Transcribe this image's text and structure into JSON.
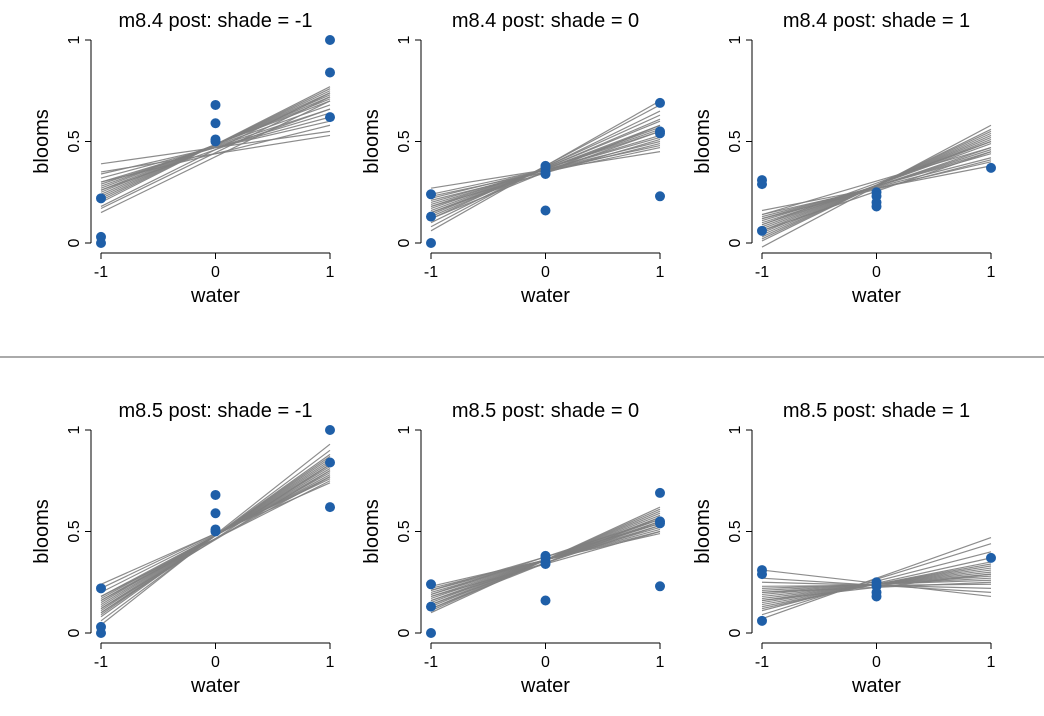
{
  "colors": {
    "point": "#1f5fa8",
    "line": "#7f7f7f",
    "divider": "#555555"
  },
  "chart_data": [
    {
      "type": "line",
      "title": "m8.4 post: shade = -1",
      "xlabel": "water",
      "ylabel": "blooms",
      "xlim": [
        -1,
        1
      ],
      "ylim": [
        0,
        1
      ],
      "xticks": [
        "-1",
        "0",
        "1"
      ],
      "yticks": [
        "0",
        "0.5",
        "1"
      ],
      "points": [
        [
          -1,
          0.22
        ],
        [
          -1,
          0.03
        ],
        [
          -1,
          0.0
        ],
        [
          0,
          0.68
        ],
        [
          0,
          0.59
        ],
        [
          0,
          0.51
        ],
        [
          0,
          0.5
        ],
        [
          1,
          1.0
        ],
        [
          1,
          0.84
        ],
        [
          1,
          0.62
        ]
      ],
      "lines": [
        [
          0.39,
          0.55
        ],
        [
          0.34,
          0.6
        ],
        [
          0.32,
          0.62
        ],
        [
          0.3,
          0.64
        ],
        [
          0.29,
          0.66
        ],
        [
          0.28,
          0.68
        ],
        [
          0.27,
          0.7
        ],
        [
          0.26,
          0.71
        ],
        [
          0.25,
          0.72
        ],
        [
          0.24,
          0.73
        ],
        [
          0.23,
          0.74
        ],
        [
          0.22,
          0.75
        ],
        [
          0.21,
          0.76
        ],
        [
          0.2,
          0.77
        ],
        [
          0.18,
          0.74
        ],
        [
          0.17,
          0.72
        ],
        [
          0.15,
          0.7
        ],
        [
          0.26,
          0.66
        ],
        [
          0.3,
          0.58
        ],
        [
          0.35,
          0.53
        ]
      ]
    },
    {
      "type": "line",
      "title": "m8.4 post: shade = 0",
      "xlabel": "water",
      "ylabel": "blooms",
      "xlim": [
        -1,
        1
      ],
      "ylim": [
        0,
        1
      ],
      "xticks": [
        "-1",
        "0",
        "1"
      ],
      "yticks": [
        "0",
        "0.5",
        "1"
      ],
      "points": [
        [
          -1,
          0.24
        ],
        [
          -1,
          0.13
        ],
        [
          -1,
          0.0
        ],
        [
          0,
          0.38
        ],
        [
          0,
          0.37
        ],
        [
          0,
          0.35
        ],
        [
          0,
          0.34
        ],
        [
          0,
          0.16
        ],
        [
          1,
          0.69
        ],
        [
          1,
          0.55
        ],
        [
          1,
          0.54
        ],
        [
          1,
          0.23
        ]
      ],
      "lines": [
        [
          0.27,
          0.45
        ],
        [
          0.24,
          0.48
        ],
        [
          0.22,
          0.5
        ],
        [
          0.2,
          0.52
        ],
        [
          0.19,
          0.53
        ],
        [
          0.18,
          0.55
        ],
        [
          0.17,
          0.56
        ],
        [
          0.16,
          0.57
        ],
        [
          0.15,
          0.58
        ],
        [
          0.14,
          0.6
        ],
        [
          0.13,
          0.61
        ],
        [
          0.12,
          0.63
        ],
        [
          0.1,
          0.65
        ],
        [
          0.08,
          0.68
        ],
        [
          0.06,
          0.7
        ],
        [
          0.21,
          0.49
        ],
        [
          0.23,
          0.47
        ],
        [
          0.15,
          0.55
        ],
        [
          0.12,
          0.58
        ],
        [
          0.18,
          0.51
        ]
      ]
    },
    {
      "type": "line",
      "title": "m8.4 post: shade = 1",
      "xlabel": "water",
      "ylabel": "blooms",
      "xlim": [
        -1,
        1
      ],
      "ylim": [
        0,
        1
      ],
      "xticks": [
        "-1",
        "0",
        "1"
      ],
      "yticks": [
        "0",
        "0.5",
        "1"
      ],
      "points": [
        [
          -1,
          0.31
        ],
        [
          -1,
          0.29
        ],
        [
          -1,
          0.06
        ],
        [
          0,
          0.25
        ],
        [
          0,
          0.23
        ],
        [
          0,
          0.2
        ],
        [
          0,
          0.18
        ],
        [
          1,
          0.37
        ]
      ],
      "lines": [
        [
          0.16,
          0.38
        ],
        [
          0.14,
          0.4
        ],
        [
          0.13,
          0.42
        ],
        [
          0.12,
          0.44
        ],
        [
          0.11,
          0.45
        ],
        [
          0.1,
          0.46
        ],
        [
          0.09,
          0.47
        ],
        [
          0.08,
          0.49
        ],
        [
          0.07,
          0.5
        ],
        [
          0.06,
          0.51
        ],
        [
          0.05,
          0.52
        ],
        [
          0.04,
          0.53
        ],
        [
          0.03,
          0.54
        ],
        [
          0.02,
          0.55
        ],
        [
          0.01,
          0.56
        ],
        [
          -0.02,
          0.58
        ],
        [
          0.12,
          0.41
        ],
        [
          0.09,
          0.5
        ],
        [
          0.06,
          0.45
        ],
        [
          0.14,
          0.47
        ]
      ]
    },
    {
      "type": "line",
      "title": "m8.5 post: shade = -1",
      "xlabel": "water",
      "ylabel": "blooms",
      "xlim": [
        -1,
        1
      ],
      "ylim": [
        0,
        1
      ],
      "xticks": [
        "-1",
        "0",
        "1"
      ],
      "yticks": [
        "0",
        "0.5",
        "1"
      ],
      "points": [
        [
          -1,
          0.22
        ],
        [
          -1,
          0.03
        ],
        [
          -1,
          0.0
        ],
        [
          0,
          0.68
        ],
        [
          0,
          0.59
        ],
        [
          0,
          0.51
        ],
        [
          0,
          0.5
        ],
        [
          1,
          1.0
        ],
        [
          1,
          0.84
        ],
        [
          1,
          0.62
        ]
      ],
      "lines": [
        [
          0.24,
          0.74
        ],
        [
          0.22,
          0.76
        ],
        [
          0.2,
          0.77
        ],
        [
          0.18,
          0.78
        ],
        [
          0.17,
          0.79
        ],
        [
          0.16,
          0.8
        ],
        [
          0.15,
          0.81
        ],
        [
          0.14,
          0.82
        ],
        [
          0.13,
          0.83
        ],
        [
          0.12,
          0.84
        ],
        [
          0.11,
          0.85
        ],
        [
          0.1,
          0.86
        ],
        [
          0.09,
          0.87
        ],
        [
          0.08,
          0.88
        ],
        [
          0.06,
          0.9
        ],
        [
          0.04,
          0.93
        ],
        [
          0.12,
          0.8
        ],
        [
          0.16,
          0.77
        ],
        [
          0.1,
          0.83
        ],
        [
          0.18,
          0.75
        ]
      ]
    },
    {
      "type": "line",
      "title": "m8.5 post: shade = 0",
      "xlabel": "water",
      "ylabel": "blooms",
      "xlim": [
        -1,
        1
      ],
      "ylim": [
        0,
        1
      ],
      "xticks": [
        "-1",
        "0",
        "1"
      ],
      "yticks": [
        "0",
        "0.5",
        "1"
      ],
      "points": [
        [
          -1,
          0.24
        ],
        [
          -1,
          0.13
        ],
        [
          -1,
          0.0
        ],
        [
          0,
          0.38
        ],
        [
          0,
          0.37
        ],
        [
          0,
          0.35
        ],
        [
          0,
          0.34
        ],
        [
          0,
          0.16
        ],
        [
          1,
          0.69
        ],
        [
          1,
          0.55
        ],
        [
          1,
          0.54
        ],
        [
          1,
          0.23
        ]
      ],
      "lines": [
        [
          0.23,
          0.49
        ],
        [
          0.22,
          0.5
        ],
        [
          0.21,
          0.51
        ],
        [
          0.2,
          0.52
        ],
        [
          0.19,
          0.53
        ],
        [
          0.18,
          0.54
        ],
        [
          0.17,
          0.55
        ],
        [
          0.16,
          0.56
        ],
        [
          0.15,
          0.57
        ],
        [
          0.14,
          0.58
        ],
        [
          0.13,
          0.59
        ],
        [
          0.12,
          0.6
        ],
        [
          0.11,
          0.61
        ],
        [
          0.1,
          0.62
        ],
        [
          0.19,
          0.56
        ],
        [
          0.16,
          0.53
        ],
        [
          0.21,
          0.54
        ],
        [
          0.14,
          0.55
        ],
        [
          0.12,
          0.57
        ],
        [
          0.18,
          0.5
        ]
      ]
    },
    {
      "type": "line",
      "title": "m8.5 post: shade = 1",
      "xlabel": "water",
      "ylabel": "blooms",
      "xlim": [
        -1,
        1
      ],
      "ylim": [
        0,
        1
      ],
      "xticks": [
        "-1",
        "0",
        "1"
      ],
      "yticks": [
        "0",
        "0.5",
        "1"
      ],
      "points": [
        [
          -1,
          0.31
        ],
        [
          -1,
          0.29
        ],
        [
          -1,
          0.06
        ],
        [
          0,
          0.25
        ],
        [
          0,
          0.23
        ],
        [
          0,
          0.2
        ],
        [
          0,
          0.18
        ],
        [
          1,
          0.37
        ]
      ],
      "lines": [
        [
          0.31,
          0.18
        ],
        [
          0.27,
          0.2
        ],
        [
          0.25,
          0.22
        ],
        [
          0.23,
          0.24
        ],
        [
          0.22,
          0.26
        ],
        [
          0.21,
          0.27
        ],
        [
          0.2,
          0.28
        ],
        [
          0.19,
          0.29
        ],
        [
          0.18,
          0.3
        ],
        [
          0.17,
          0.31
        ],
        [
          0.16,
          0.32
        ],
        [
          0.15,
          0.33
        ],
        [
          0.14,
          0.34
        ],
        [
          0.13,
          0.35
        ],
        [
          0.12,
          0.37
        ],
        [
          0.11,
          0.4
        ],
        [
          0.09,
          0.44
        ],
        [
          0.07,
          0.47
        ],
        [
          0.2,
          0.25
        ],
        [
          0.16,
          0.29
        ]
      ]
    }
  ]
}
